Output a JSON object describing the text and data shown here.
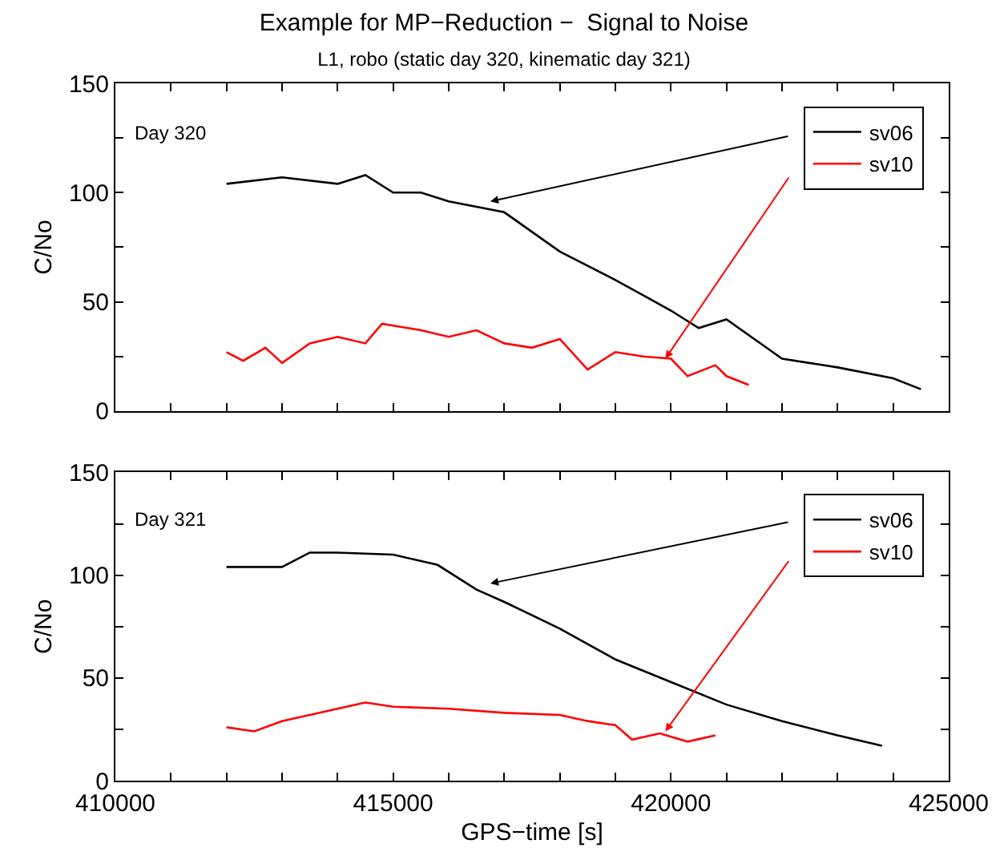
{
  "chart_data": [
    {
      "type": "line",
      "title": "Example for MP−Reduction −  Signal to Noise",
      "subtitle": "L1, robo (static day 320, kinematic day 321)",
      "ylabel": "C/No",
      "annotations": [
        "Day 320"
      ],
      "legend": "top right",
      "tick_labels": "y",
      "line_style": "solid",
      "marker": "none",
      "xlim": [
        410000,
        425000
      ],
      "xticks": [
        {
          "value": 410000,
          "label": null
        },
        {
          "value": 411000,
          "label": null
        },
        {
          "value": 412000,
          "label": null
        },
        {
          "value": 413000,
          "label": null
        },
        {
          "value": 414000,
          "label": null
        },
        {
          "value": 415000,
          "label": null
        },
        {
          "value": 416000,
          "label": null
        },
        {
          "value": 417000,
          "label": null
        },
        {
          "value": 418000,
          "label": null
        },
        {
          "value": 419000,
          "label": null
        },
        {
          "value": 420000,
          "label": null
        },
        {
          "value": 421000,
          "label": null
        },
        {
          "value": 422000,
          "label": null
        },
        {
          "value": 423000,
          "label": null
        },
        {
          "value": 424000,
          "label": null
        },
        {
          "value": 425000,
          "label": null
        }
      ],
      "ylim": [
        0,
        150
      ],
      "yticks": [
        0,
        {
          "value": 25,
          "label": null
        },
        50,
        {
          "value": 75,
          "label": null
        },
        100,
        {
          "value": 125,
          "label": null
        },
        150
      ],
      "series": [
        {
          "name": "sv06",
          "color": "#000000",
          "x": [
            412000,
            413000,
            414000,
            414500,
            415000,
            415500,
            416000,
            417000,
            418000,
            419000,
            419500,
            420000,
            420500,
            421000,
            421500,
            422000,
            423000,
            424000,
            424500
          ],
          "values": [
            104,
            107,
            104,
            108,
            100,
            100,
            96,
            91,
            73,
            60,
            53,
            46,
            38,
            42,
            33,
            24,
            20,
            15,
            10
          ]
        },
        {
          "name": "sv10",
          "color": "#ff0000",
          "x": [
            412000,
            412300,
            412700,
            413000,
            413500,
            414000,
            414500,
            414800,
            415500,
            416000,
            416500,
            417000,
            417500,
            418000,
            418500,
            419000,
            419500,
            420000,
            420300,
            420800,
            421000,
            421400
          ],
          "values": [
            27,
            23,
            29,
            22,
            31,
            34,
            31,
            40,
            37,
            34,
            37,
            31,
            29,
            33,
            19,
            27,
            25,
            24,
            16,
            21,
            16,
            12
          ]
        }
      ]
    },
    {
      "type": "line",
      "xlabel": "GPS−time [s]",
      "ylabel": "C/No",
      "annotations": [
        "Day 321"
      ],
      "legend": "top right",
      "line_style": "solid",
      "marker": "none",
      "xlim": [
        410000,
        425000
      ],
      "xticks": [
        410000,
        {
          "value": 411000,
          "label": null
        },
        {
          "value": 412000,
          "label": null
        },
        {
          "value": 413000,
          "label": null
        },
        {
          "value": 414000,
          "label": null
        },
        415000,
        {
          "value": 416000,
          "label": null
        },
        {
          "value": 417000,
          "label": null
        },
        {
          "value": 418000,
          "label": null
        },
        {
          "value": 419000,
          "label": null
        },
        420000,
        {
          "value": 421000,
          "label": null
        },
        {
          "value": 422000,
          "label": null
        },
        {
          "value": 423000,
          "label": null
        },
        {
          "value": 424000,
          "label": null
        },
        425000
      ],
      "ylim": [
        0,
        150
      ],
      "yticks": [
        0,
        {
          "value": 25,
          "label": null
        },
        50,
        {
          "value": 75,
          "label": null
        },
        100,
        {
          "value": 125,
          "label": null
        },
        150
      ],
      "series": [
        {
          "name": "sv06",
          "color": "#000000",
          "x": [
            412000,
            413000,
            413500,
            414000,
            415000,
            415800,
            416500,
            417000,
            418000,
            419000,
            420000,
            421000,
            422000,
            423000,
            423800
          ],
          "values": [
            104,
            104,
            111,
            111,
            110,
            105,
            93,
            87,
            74,
            59,
            48,
            37,
            29,
            22,
            17
          ]
        },
        {
          "name": "sv10",
          "color": "#ff0000",
          "x": [
            412000,
            412500,
            413000,
            414000,
            414500,
            415000,
            416000,
            417000,
            418000,
            418500,
            419000,
            419300,
            419800,
            420300,
            420800
          ],
          "values": [
            26,
            24,
            29,
            35,
            38,
            36,
            35,
            33,
            32,
            29,
            27,
            20,
            23,
            19,
            22
          ]
        }
      ]
    }
  ]
}
